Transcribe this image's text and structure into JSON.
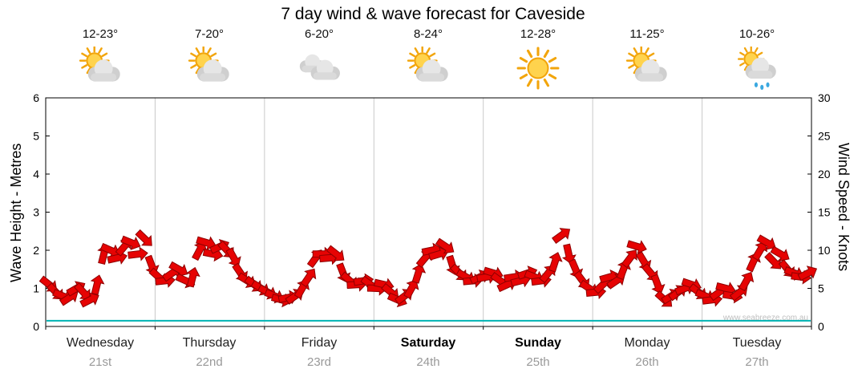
{
  "title": "7 day wind & wave forecast for Caveside",
  "watermark": "www.seabreeze.com.au",
  "forecast_days": [
    {
      "name": "Wednesday",
      "date": "21st",
      "temp": "12-23°",
      "icon": "partly-cloudy",
      "bold": false
    },
    {
      "name": "Thursday",
      "date": "22nd",
      "temp": "7-20°",
      "icon": "partly-cloudy",
      "bold": false
    },
    {
      "name": "Friday",
      "date": "23rd",
      "temp": "6-20°",
      "icon": "cloudy",
      "bold": false
    },
    {
      "name": "Saturday",
      "date": "24th",
      "temp": "8-24°",
      "icon": "partly-cloudy",
      "bold": true
    },
    {
      "name": "Sunday",
      "date": "25th",
      "temp": "12-28°",
      "icon": "sunny",
      "bold": true
    },
    {
      "name": "Monday",
      "date": "26th",
      "temp": "11-25°",
      "icon": "partly-cloudy",
      "bold": false
    },
    {
      "name": "Tuesday",
      "date": "27th",
      "temp": "10-26°",
      "icon": "partly-cloudy-rain",
      "bold": false
    }
  ],
  "chart_data": {
    "type": "line",
    "title": "7 day wind & wave forecast for Caveside",
    "categories": [
      "Wednesday 21st",
      "Thursday 22nd",
      "Friday 23rd",
      "Saturday 24th",
      "Sunday 25th",
      "Monday 26th",
      "Tuesday 27th"
    ],
    "left_axis": {
      "label": "Wave Height - Metres",
      "min": 0,
      "max": 6,
      "tick_step": 1
    },
    "right_axis": {
      "label": "Wind Speed - Knots",
      "min": 0,
      "max": 30,
      "tick_step": 5
    },
    "grid": "vertical-day-separators",
    "legend": "none",
    "colors": {
      "arrow": "#e60303",
      "arrow_stroke": "#8f0000",
      "wave_line": "#00b3b3"
    },
    "series": [
      {
        "name": "Wind Speed (knots, red direction arrows)",
        "axis": "right",
        "style": "red-arrows",
        "points_per_day": 16,
        "values_by_day": [
          [
            5.5,
            4.5,
            4.0,
            3.8,
            5.0,
            4.5,
            3.5,
            5.5,
            9.5,
            10.0,
            9.0,
            10.5,
            11.0,
            9.5,
            11.5,
            8.0
          ],
          [
            6.5,
            6.0,
            7.0,
            7.5,
            6.0,
            6.5,
            10.0,
            11.0,
            9.5,
            10.5,
            10.0,
            9.0,
            7.0,
            6.0,
            5.5,
            5.0
          ],
          [
            4.5,
            4.0,
            3.5,
            3.8,
            4.0,
            5.0,
            6.5,
            9.0,
            9.5,
            9.0,
            9.5,
            7.0,
            6.0,
            5.5,
            6.0,
            5.5
          ],
          [
            5.0,
            5.5,
            4.5,
            3.5,
            4.0,
            5.0,
            7.0,
            9.0,
            10.0,
            9.5,
            10.5,
            8.0,
            7.0,
            6.5,
            6.0,
            6.5
          ],
          [
            6.5,
            7.0,
            6.0,
            5.5,
            6.5,
            6.0,
            7.0,
            6.5,
            6.0,
            7.0,
            8.5,
            12.0,
            9.5,
            7.5,
            6.0,
            5.0
          ],
          [
            4.5,
            5.5,
            6.5,
            6.0,
            7.5,
            9.0,
            10.5,
            8.5,
            7.0,
            5.5,
            3.5,
            4.0,
            4.5,
            5.0,
            5.5,
            4.5
          ],
          [
            4.0,
            3.5,
            4.5,
            5.0,
            4.0,
            4.5,
            6.0,
            8.5,
            10.0,
            11.0,
            8.5,
            9.5,
            7.5,
            7.0,
            6.5,
            7.0
          ]
        ]
      },
      {
        "name": "Wave Height (metres, flat teal line)",
        "axis": "left",
        "style": "line",
        "values": [
          0.15,
          0.15
        ]
      }
    ]
  }
}
